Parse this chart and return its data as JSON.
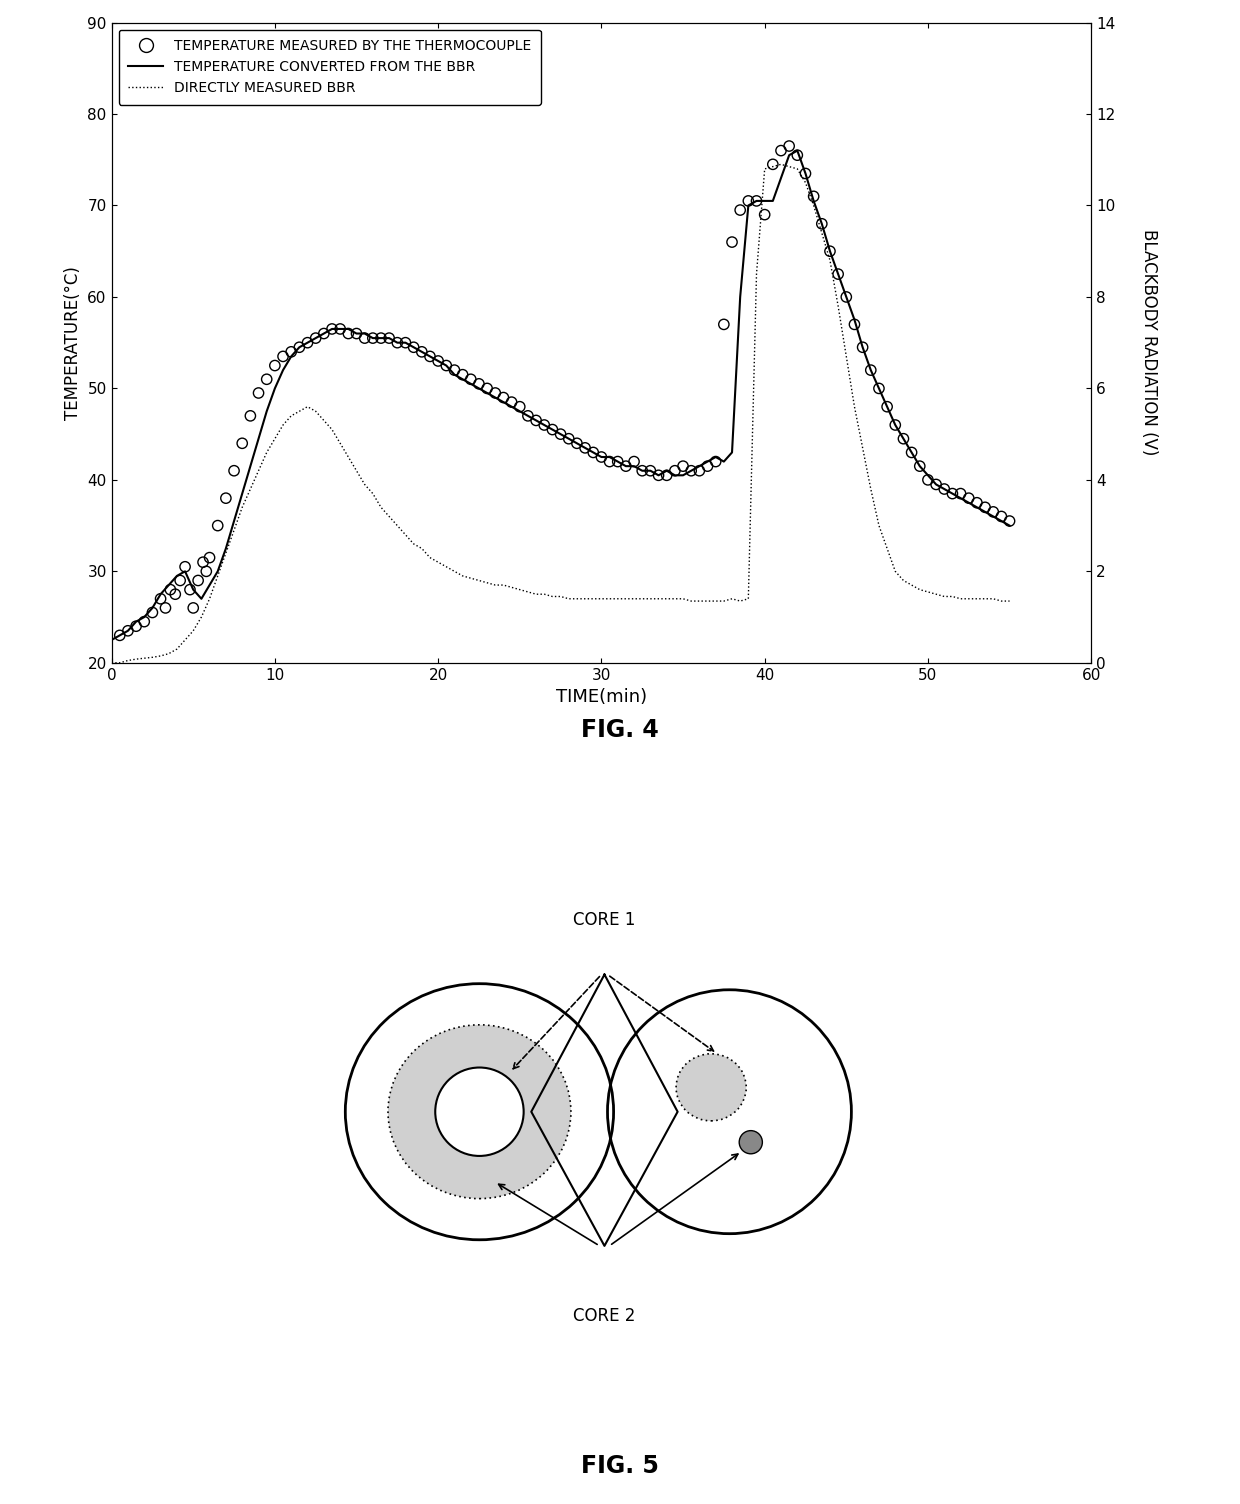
{
  "fig4": {
    "title": "FIG. 4",
    "xlabel": "TIME(min)",
    "ylabel_left": "TEMPERATURE(°C)",
    "ylabel_right": "BLACKBODY RADIATION (V)",
    "xlim": [
      0,
      60
    ],
    "ylim_left": [
      20,
      90
    ],
    "ylim_right": [
      0,
      14
    ],
    "xticks": [
      0,
      10,
      20,
      30,
      40,
      50,
      60
    ],
    "yticks_left": [
      20,
      30,
      40,
      50,
      60,
      70,
      80,
      90
    ],
    "yticks_right": [
      0,
      2,
      4,
      6,
      8,
      10,
      12,
      14
    ],
    "legend_labels": [
      "TEMPERATURE MEASURED BY THE THERMOCOUPLE",
      "TEMPERATURE CONVERTED FROM THE BBR",
      "DIRECTLY MEASURED BBR"
    ],
    "thermocouple_x": [
      0.5,
      1.0,
      1.5,
      2.0,
      2.5,
      3.0,
      3.3,
      3.6,
      3.9,
      4.2,
      4.5,
      4.8,
      5.0,
      5.3,
      5.6,
      5.8,
      6.0,
      6.5,
      7.0,
      7.5,
      8.0,
      8.5,
      9.0,
      9.5,
      10.0,
      10.5,
      11.0,
      11.5,
      12.0,
      12.5,
      13.0,
      13.5,
      14.0,
      14.5,
      15.0,
      15.5,
      16.0,
      16.5,
      17.0,
      17.5,
      18.0,
      18.5,
      19.0,
      19.5,
      20.0,
      20.5,
      21.0,
      21.5,
      22.0,
      22.5,
      23.0,
      23.5,
      24.0,
      24.5,
      25.0,
      25.5,
      26.0,
      26.5,
      27.0,
      27.5,
      28.0,
      28.5,
      29.0,
      29.5,
      30.0,
      30.5,
      31.0,
      31.5,
      32.0,
      32.5,
      33.0,
      33.5,
      34.0,
      34.5,
      35.0,
      35.5,
      36.0,
      36.5,
      37.0,
      37.5,
      38.0,
      38.5,
      39.0,
      39.5,
      40.0,
      40.5,
      41.0,
      41.5,
      42.0,
      42.5,
      43.0,
      43.5,
      44.0,
      44.5,
      45.0,
      45.5,
      46.0,
      46.5,
      47.0,
      47.5,
      48.0,
      48.5,
      49.0,
      49.5,
      50.0,
      50.5,
      51.0,
      51.5,
      52.0,
      52.5,
      53.0,
      53.5,
      54.0,
      54.5,
      55.0
    ],
    "thermocouple_y": [
      23.0,
      23.5,
      24.0,
      24.5,
      25.5,
      27.0,
      26.0,
      28.0,
      27.5,
      29.0,
      30.5,
      28.0,
      26.0,
      29.0,
      31.0,
      30.0,
      31.5,
      35.0,
      38.0,
      41.0,
      44.0,
      47.0,
      49.5,
      51.0,
      52.5,
      53.5,
      54.0,
      54.5,
      55.0,
      55.5,
      56.0,
      56.5,
      56.5,
      56.0,
      56.0,
      55.5,
      55.5,
      55.5,
      55.5,
      55.0,
      55.0,
      54.5,
      54.0,
      53.5,
      53.0,
      52.5,
      52.0,
      51.5,
      51.0,
      50.5,
      50.0,
      49.5,
      49.0,
      48.5,
      48.0,
      47.0,
      46.5,
      46.0,
      45.5,
      45.0,
      44.5,
      44.0,
      43.5,
      43.0,
      42.5,
      42.0,
      42.0,
      41.5,
      42.0,
      41.0,
      41.0,
      40.5,
      40.5,
      41.0,
      41.5,
      41.0,
      41.0,
      41.5,
      42.0,
      57.0,
      66.0,
      69.5,
      70.5,
      70.5,
      69.0,
      74.5,
      76.0,
      76.5,
      75.5,
      73.5,
      71.0,
      68.0,
      65.0,
      62.5,
      60.0,
      57.0,
      54.5,
      52.0,
      50.0,
      48.0,
      46.0,
      44.5,
      43.0,
      41.5,
      40.0,
      39.5,
      39.0,
      38.5,
      38.5,
      38.0,
      37.5,
      37.0,
      36.5,
      36.0,
      35.5
    ],
    "bbr_converted_x": [
      0.0,
      0.5,
      1.0,
      1.5,
      2.0,
      2.5,
      3.0,
      3.5,
      4.0,
      4.5,
      5.0,
      5.5,
      6.0,
      6.5,
      7.0,
      7.5,
      8.0,
      8.5,
      9.0,
      9.5,
      10.0,
      10.5,
      11.0,
      11.5,
      12.0,
      12.5,
      13.0,
      13.5,
      14.0,
      14.5,
      15.0,
      15.5,
      16.0,
      16.5,
      17.0,
      17.5,
      18.0,
      18.5,
      19.0,
      19.5,
      20.0,
      20.5,
      21.0,
      21.5,
      22.0,
      22.5,
      23.0,
      23.5,
      24.0,
      24.5,
      25.0,
      25.5,
      26.0,
      26.5,
      27.0,
      27.5,
      28.0,
      28.5,
      29.0,
      29.5,
      30.0,
      30.5,
      31.0,
      31.5,
      32.0,
      32.5,
      33.0,
      33.5,
      34.0,
      34.5,
      35.0,
      35.5,
      36.0,
      36.5,
      37.0,
      37.5,
      38.0,
      38.5,
      39.0,
      39.5,
      40.0,
      40.5,
      41.0,
      41.5,
      42.0,
      42.5,
      43.0,
      43.5,
      44.0,
      44.5,
      45.0,
      45.5,
      46.0,
      46.5,
      47.0,
      47.5,
      48.0,
      48.5,
      49.0,
      49.5,
      50.0,
      50.5,
      51.0,
      51.5,
      52.0,
      52.5,
      53.0,
      53.5,
      54.0,
      54.5,
      55.0
    ],
    "bbr_converted_y": [
      22.5,
      23.0,
      23.5,
      24.5,
      25.0,
      26.0,
      27.5,
      28.5,
      29.5,
      30.0,
      28.0,
      27.0,
      28.5,
      30.0,
      32.5,
      35.5,
      38.5,
      41.5,
      44.5,
      47.5,
      50.0,
      52.0,
      53.5,
      54.5,
      55.0,
      55.5,
      56.0,
      56.5,
      56.5,
      56.5,
      56.0,
      56.0,
      55.5,
      55.5,
      55.5,
      55.0,
      55.0,
      54.5,
      54.0,
      53.5,
      53.0,
      52.5,
      51.5,
      51.0,
      50.5,
      50.0,
      49.5,
      49.0,
      48.5,
      48.0,
      47.5,
      47.0,
      46.5,
      46.0,
      45.5,
      45.0,
      44.5,
      44.0,
      43.5,
      43.0,
      42.5,
      42.5,
      42.0,
      41.5,
      41.5,
      41.0,
      41.0,
      40.5,
      41.0,
      40.5,
      40.5,
      41.0,
      41.5,
      42.0,
      42.5,
      42.0,
      43.0,
      60.0,
      70.0,
      70.5,
      70.5,
      70.5,
      73.0,
      75.5,
      76.0,
      73.5,
      70.5,
      68.0,
      65.0,
      62.5,
      60.0,
      57.5,
      54.5,
      52.0,
      50.0,
      48.0,
      46.0,
      44.5,
      43.0,
      41.5,
      40.5,
      39.5,
      39.0,
      38.5,
      38.0,
      37.5,
      37.0,
      36.5,
      36.0,
      35.5,
      35.0
    ],
    "bbr_direct_x": [
      0.0,
      0.5,
      1.0,
      1.5,
      2.0,
      2.5,
      3.0,
      3.5,
      4.0,
      4.5,
      5.0,
      5.5,
      6.0,
      6.5,
      7.0,
      7.5,
      8.0,
      8.5,
      9.0,
      9.5,
      10.0,
      10.5,
      11.0,
      11.5,
      12.0,
      12.5,
      13.0,
      13.5,
      14.0,
      14.5,
      15.0,
      15.5,
      16.0,
      16.5,
      17.0,
      17.5,
      18.0,
      18.5,
      19.0,
      19.5,
      20.0,
      20.5,
      21.0,
      21.5,
      22.0,
      22.5,
      23.0,
      23.5,
      24.0,
      24.5,
      25.0,
      25.5,
      26.0,
      26.5,
      27.0,
      27.5,
      28.0,
      28.5,
      29.0,
      29.5,
      30.0,
      30.5,
      31.0,
      31.5,
      32.0,
      32.5,
      33.0,
      33.5,
      34.0,
      34.5,
      35.0,
      35.5,
      36.0,
      36.5,
      37.0,
      37.5,
      38.0,
      38.5,
      39.0,
      39.5,
      40.0,
      40.5,
      41.0,
      41.5,
      42.0,
      42.5,
      43.0,
      43.5,
      44.0,
      44.5,
      45.0,
      45.5,
      46.0,
      46.5,
      47.0,
      47.5,
      48.0,
      48.5,
      49.0,
      49.5,
      50.0,
      50.5,
      51.0,
      51.5,
      52.0,
      52.5,
      53.0,
      53.5,
      54.0,
      54.5,
      55.0
    ],
    "bbr_direct_y_volts": [
      0.0,
      0.0,
      0.05,
      0.08,
      0.1,
      0.12,
      0.15,
      0.2,
      0.3,
      0.5,
      0.7,
      1.0,
      1.4,
      1.9,
      2.4,
      2.9,
      3.4,
      3.8,
      4.2,
      4.6,
      4.9,
      5.2,
      5.4,
      5.5,
      5.6,
      5.5,
      5.3,
      5.1,
      4.8,
      4.5,
      4.2,
      3.9,
      3.7,
      3.4,
      3.2,
      3.0,
      2.8,
      2.6,
      2.5,
      2.3,
      2.2,
      2.1,
      2.0,
      1.9,
      1.85,
      1.8,
      1.75,
      1.7,
      1.7,
      1.65,
      1.6,
      1.55,
      1.5,
      1.5,
      1.45,
      1.45,
      1.4,
      1.4,
      1.4,
      1.4,
      1.4,
      1.4,
      1.4,
      1.4,
      1.4,
      1.4,
      1.4,
      1.4,
      1.4,
      1.4,
      1.4,
      1.35,
      1.35,
      1.35,
      1.35,
      1.35,
      1.4,
      1.35,
      1.4,
      8.5,
      10.8,
      10.85,
      10.9,
      10.85,
      10.8,
      10.5,
      10.0,
      9.4,
      8.8,
      7.8,
      6.7,
      5.6,
      4.7,
      3.8,
      3.0,
      2.5,
      2.0,
      1.8,
      1.7,
      1.6,
      1.55,
      1.5,
      1.45,
      1.45,
      1.4,
      1.4,
      1.4,
      1.4,
      1.4,
      1.35,
      1.35
    ]
  },
  "fig5": {
    "title": "FIG. 5",
    "core1_label": "CORE 1",
    "core2_label": "CORE 2"
  }
}
